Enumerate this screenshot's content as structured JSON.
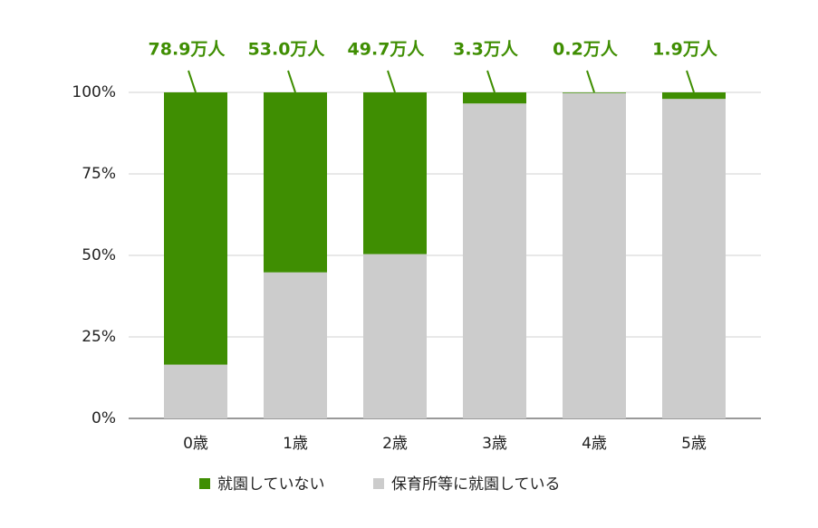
{
  "chart_data": {
    "type": "stacked_bar_100",
    "categories": [
      "0歳",
      "1歳",
      "2歳",
      "3歳",
      "4歳",
      "5歳"
    ],
    "series": [
      {
        "name": "就園していない",
        "color": "#3f8e02",
        "values": [
          83.5,
          55.2,
          49.6,
          3.4,
          0.2,
          2
        ]
      },
      {
        "name": "保育所等に就園している",
        "color": "#cccccc",
        "values": [
          16.5,
          44.8,
          50.4,
          96.6,
          99.8,
          98
        ]
      }
    ],
    "annotations": [
      "78.9万人",
      "53.0万人",
      "49.7万人",
      "3.3万人",
      "0.2万人",
      "1.9万人"
    ],
    "annotation_color": "#3f8e02",
    "ylim": [
      0,
      100
    ],
    "yticks": [
      {
        "value": 0,
        "label": "0%"
      },
      {
        "value": 25,
        "label": "25%"
      },
      {
        "value": 50,
        "label": "50%"
      },
      {
        "value": 75,
        "label": "75%"
      },
      {
        "value": 100,
        "label": "100%"
      }
    ],
    "grid": true
  }
}
